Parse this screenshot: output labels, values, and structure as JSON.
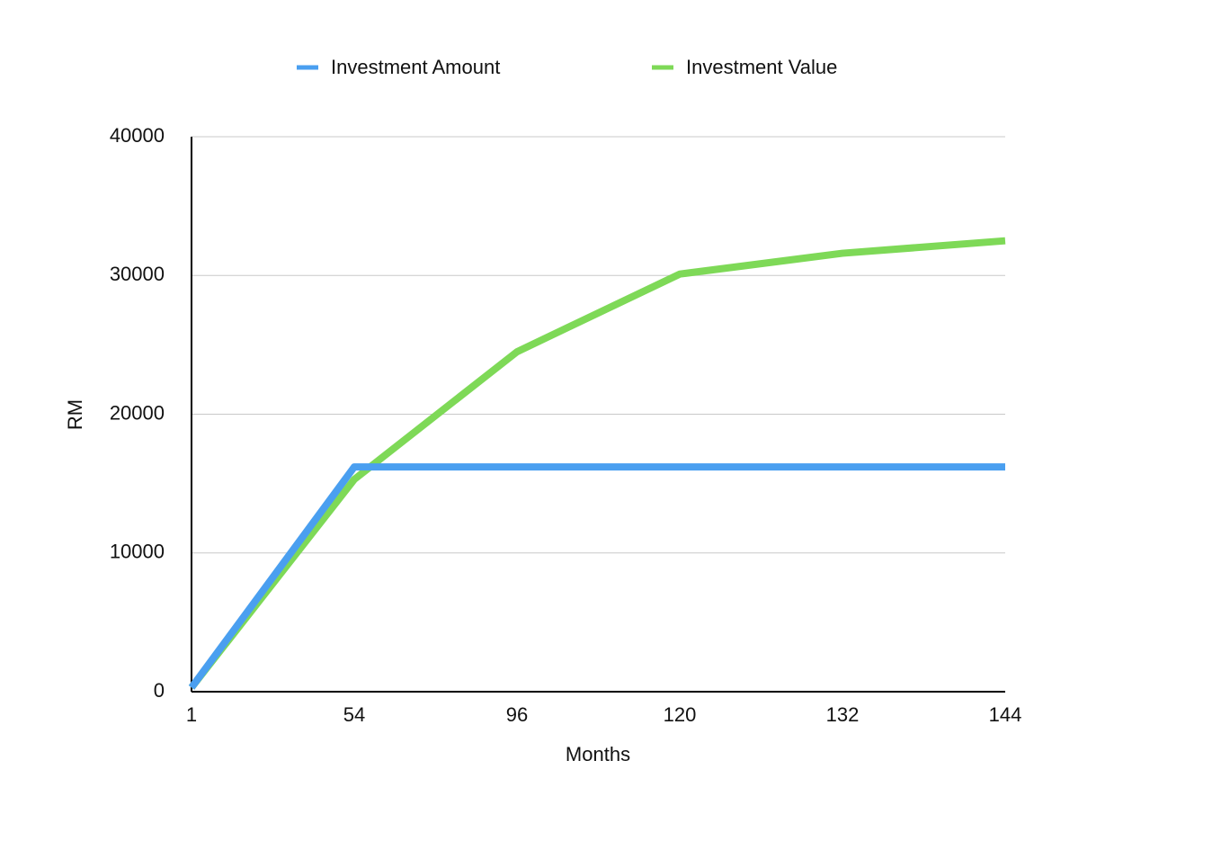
{
  "chart_data": {
    "type": "line",
    "x_label": "Months",
    "y_label": "RM",
    "categories": [
      "1",
      "54",
      "96",
      "120",
      "132",
      "144"
    ],
    "series": [
      {
        "name": "Investment Amount",
        "color": "#4a9ff0",
        "values": [
          300,
          16200,
          16200,
          16200,
          16200,
          16200
        ]
      },
      {
        "name": "Investment Value",
        "color": "#7ed957",
        "values": [
          300,
          15300,
          24500,
          30100,
          31600,
          32500
        ]
      }
    ],
    "ylim": [
      0,
      40000
    ],
    "yticks": [
      0,
      10000,
      20000,
      30000,
      40000
    ],
    "grid": true,
    "legend": "top"
  }
}
